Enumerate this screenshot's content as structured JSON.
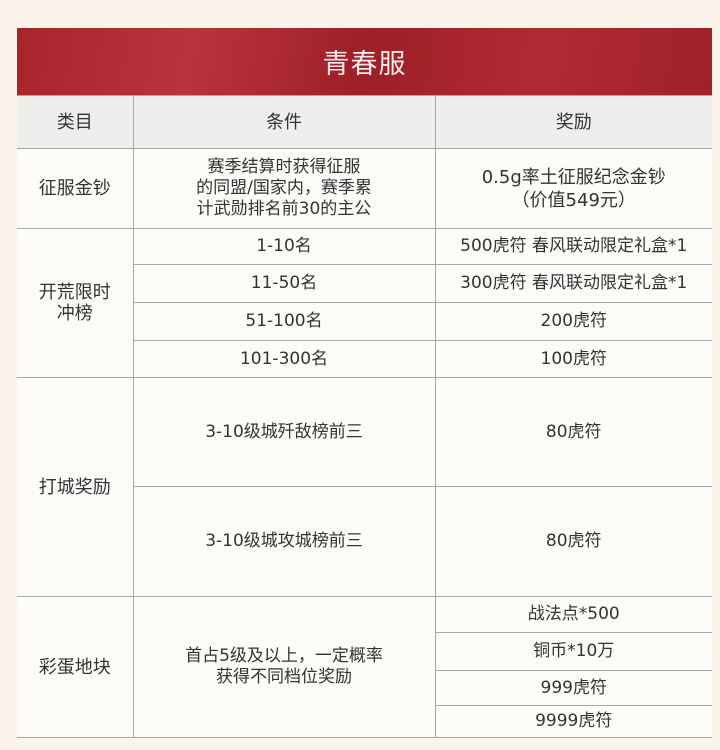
{
  "title": "青春服",
  "headers": [
    "类目",
    "条件",
    "奖励"
  ],
  "rows": {
    "conquest": {
      "category": "征服金钞",
      "condition": [
        "赛季结算时获得征服",
        "的同盟/国家内，赛季累",
        "计武勋排名前30的主公"
      ],
      "reward": [
        "0.5g率土征服纪念金钞",
        "（价值549元）"
      ]
    },
    "ranking": {
      "category": [
        "开荒限时",
        "冲榜"
      ],
      "items": [
        {
          "condition": "1-10名",
          "reward": "500虎符 春风联动限定礼盒*1"
        },
        {
          "condition": "11-50名",
          "reward": "300虎符 春风联动限定礼盒*1"
        },
        {
          "condition": "51-100名",
          "reward": "200虎符"
        },
        {
          "condition": "101-300名",
          "reward": "100虎符"
        }
      ]
    },
    "siege": {
      "category": "打城奖励",
      "items": [
        {
          "condition": "3-10级城歼敌榜前三",
          "reward": "80虎符"
        },
        {
          "condition": "3-10级城攻城榜前三",
          "reward": "80虎符"
        }
      ]
    },
    "easter": {
      "category": "彩蛋地块",
      "condition": [
        "首占5级及以上，一定概率",
        "获得不同档位奖励"
      ],
      "rewards": [
        "战法点*500",
        "铜币*10万",
        "999虎符",
        "9999虎符"
      ]
    }
  },
  "colors": {
    "banner": "#a8242b",
    "header_bg": "#eeeeec",
    "page_bg": "#fbf4ea"
  }
}
